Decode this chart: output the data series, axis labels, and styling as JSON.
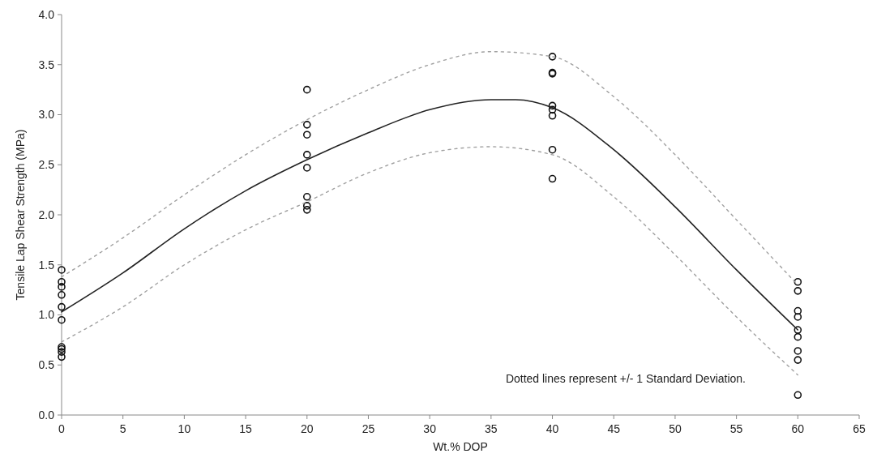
{
  "chart_data": {
    "type": "scatter",
    "xlabel": "Wt.% DOP",
    "ylabel": "Tensile Lap Shear Strength (MPa)",
    "xlim": [
      0,
      65
    ],
    "xticks": [
      0,
      5,
      10,
      15,
      20,
      25,
      30,
      35,
      40,
      45,
      50,
      55,
      60,
      65
    ],
    "ylim": [
      0,
      4
    ],
    "yticks": [
      {
        "value": 0,
        "label": "0.0"
      },
      {
        "value": 0.5,
        "label": "0.5"
      },
      {
        "value": 1,
        "label": "1.0"
      },
      {
        "value": 1.5,
        "label": "1.5"
      },
      {
        "value": 2,
        "label": "2.0"
      },
      {
        "value": 2.5,
        "label": "2.5"
      },
      {
        "value": 3,
        "label": "3.0"
      },
      {
        "value": 3.5,
        "label": "3.5"
      },
      {
        "value": 4,
        "label": "4.0"
      }
    ],
    "grid": false,
    "annotations": [
      "Dotted lines represent +/- 1 Standard Deviation."
    ],
    "series": [
      {
        "marker": "circle",
        "color": "#111111",
        "x": [
          0,
          0,
          0,
          0,
          0,
          0,
          0,
          0,
          0,
          0,
          20,
          20,
          20,
          20,
          20,
          20,
          20,
          20,
          40,
          40,
          40,
          40,
          40,
          40,
          40,
          40,
          60,
          60,
          60,
          60,
          60,
          60,
          60,
          60,
          60
        ],
        "values": [
          1.45,
          1.33,
          1.28,
          1.2,
          1.08,
          0.95,
          0.68,
          0.66,
          0.63,
          0.58,
          3.25,
          2.9,
          2.8,
          2.6,
          2.47,
          2.18,
          2.09,
          2.05,
          3.58,
          3.42,
          3.41,
          3.09,
          3.05,
          2.99,
          2.65,
          2.36,
          1.33,
          1.24,
          1.04,
          0.98,
          0.85,
          0.78,
          0.64,
          0.55,
          0.2
        ]
      },
      {
        "type": "line",
        "line_style": "solid",
        "color": "#222222",
        "x": [
          0,
          5,
          10,
          15,
          20,
          25,
          30,
          35,
          37,
          40,
          45,
          50,
          55,
          60
        ],
        "values": [
          1.03,
          1.42,
          1.86,
          2.24,
          2.55,
          2.82,
          3.05,
          3.15,
          3.15,
          3.07,
          2.65,
          2.08,
          1.45,
          0.85
        ]
      },
      {
        "type": "line",
        "line_style": "dotted",
        "color": "#a0a0a0",
        "x": [
          0,
          5,
          10,
          15,
          20,
          25,
          30,
          35,
          40,
          45,
          50,
          55,
          60
        ],
        "values": [
          1.38,
          1.77,
          2.2,
          2.6,
          2.95,
          3.25,
          3.5,
          3.63,
          3.58,
          3.18,
          2.6,
          1.95,
          1.3
        ]
      },
      {
        "type": "line",
        "line_style": "dotted",
        "color": "#a0a0a0",
        "x": [
          0,
          5,
          10,
          15,
          20,
          25,
          30,
          35,
          40,
          45,
          50,
          55,
          60
        ],
        "values": [
          0.73,
          1.08,
          1.5,
          1.85,
          2.13,
          2.42,
          2.62,
          2.68,
          2.6,
          2.18,
          1.6,
          0.98,
          0.4
        ]
      }
    ]
  }
}
